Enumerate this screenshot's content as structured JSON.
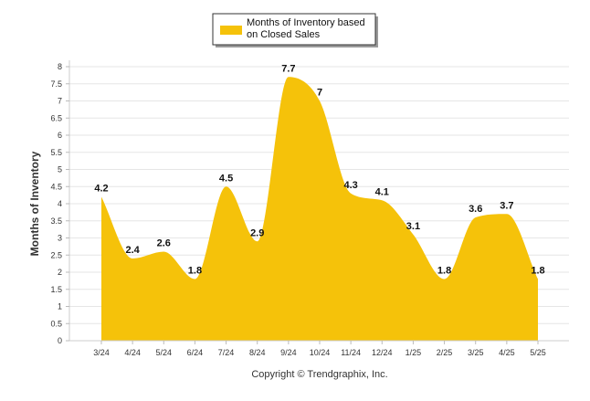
{
  "chart_data": {
    "type": "area",
    "categories": [
      "3/24",
      "4/24",
      "5/24",
      "6/24",
      "7/24",
      "8/24",
      "9/24",
      "10/24",
      "11/24",
      "12/24",
      "1/25",
      "2/25",
      "3/25",
      "4/25",
      "5/25"
    ],
    "series": [
      {
        "name": "Months of Inventory based on Closed Sales",
        "values": [
          4.2,
          2.4,
          2.6,
          1.8,
          4.5,
          2.9,
          7.7,
          7,
          4.3,
          4.1,
          3.1,
          1.8,
          3.6,
          3.7,
          1.8
        ],
        "labels": [
          "4.2",
          "2.4",
          "2.6",
          "1.8",
          "4.5",
          "2.9",
          "7.7",
          "7",
          "4.3",
          "4.1",
          "3.1",
          "1.8",
          "3.6",
          "3.7",
          "1.8"
        ],
        "color": "#F5C20A"
      }
    ],
    "ylabel": "Months of Inventory",
    "xlabel": "",
    "ylim": [
      0,
      8
    ],
    "yticks": [
      "0",
      "0.5",
      "1",
      "1.5",
      "2",
      "2.5",
      "3",
      "3.5",
      "4",
      "4.5",
      "5",
      "5.5",
      "6",
      "6.5",
      "7",
      "7.5",
      "8"
    ],
    "grid": true,
    "legend_position": "top-center"
  },
  "legend": {
    "line1": "Months of Inventory based",
    "line2": "on Closed Sales"
  },
  "footer": {
    "copyright": "Copyright © Trendgraphix, Inc."
  }
}
